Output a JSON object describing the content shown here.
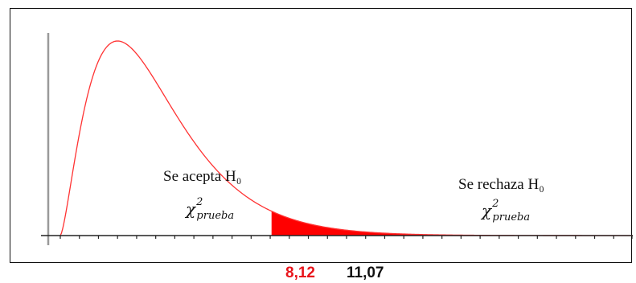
{
  "chart_data": {
    "type": "area",
    "distribution": "chi-square",
    "degrees_of_freedom": 5,
    "x_range": [
      0,
      30
    ],
    "critical_value": 11.07,
    "test_statistic": 8.12,
    "regions": {
      "accept": {
        "label": "Se acepta H₀",
        "stat_symbol": "χ",
        "stat_sup": "2",
        "stat_sub": "prueba"
      },
      "reject": {
        "label": "Se rechaza H₀",
        "stat_symbol": "χ",
        "stat_sup": "2",
        "stat_sub": "prueba"
      }
    },
    "value_labels": {
      "statistic": "8,12",
      "critical": "11,07"
    },
    "colors": {
      "curve": "#ff3333",
      "rejection_fill": "#ff0000",
      "statistic_label": "#e8141b",
      "critical_label": "#111111",
      "axis": "#222222"
    },
    "grid": false
  }
}
